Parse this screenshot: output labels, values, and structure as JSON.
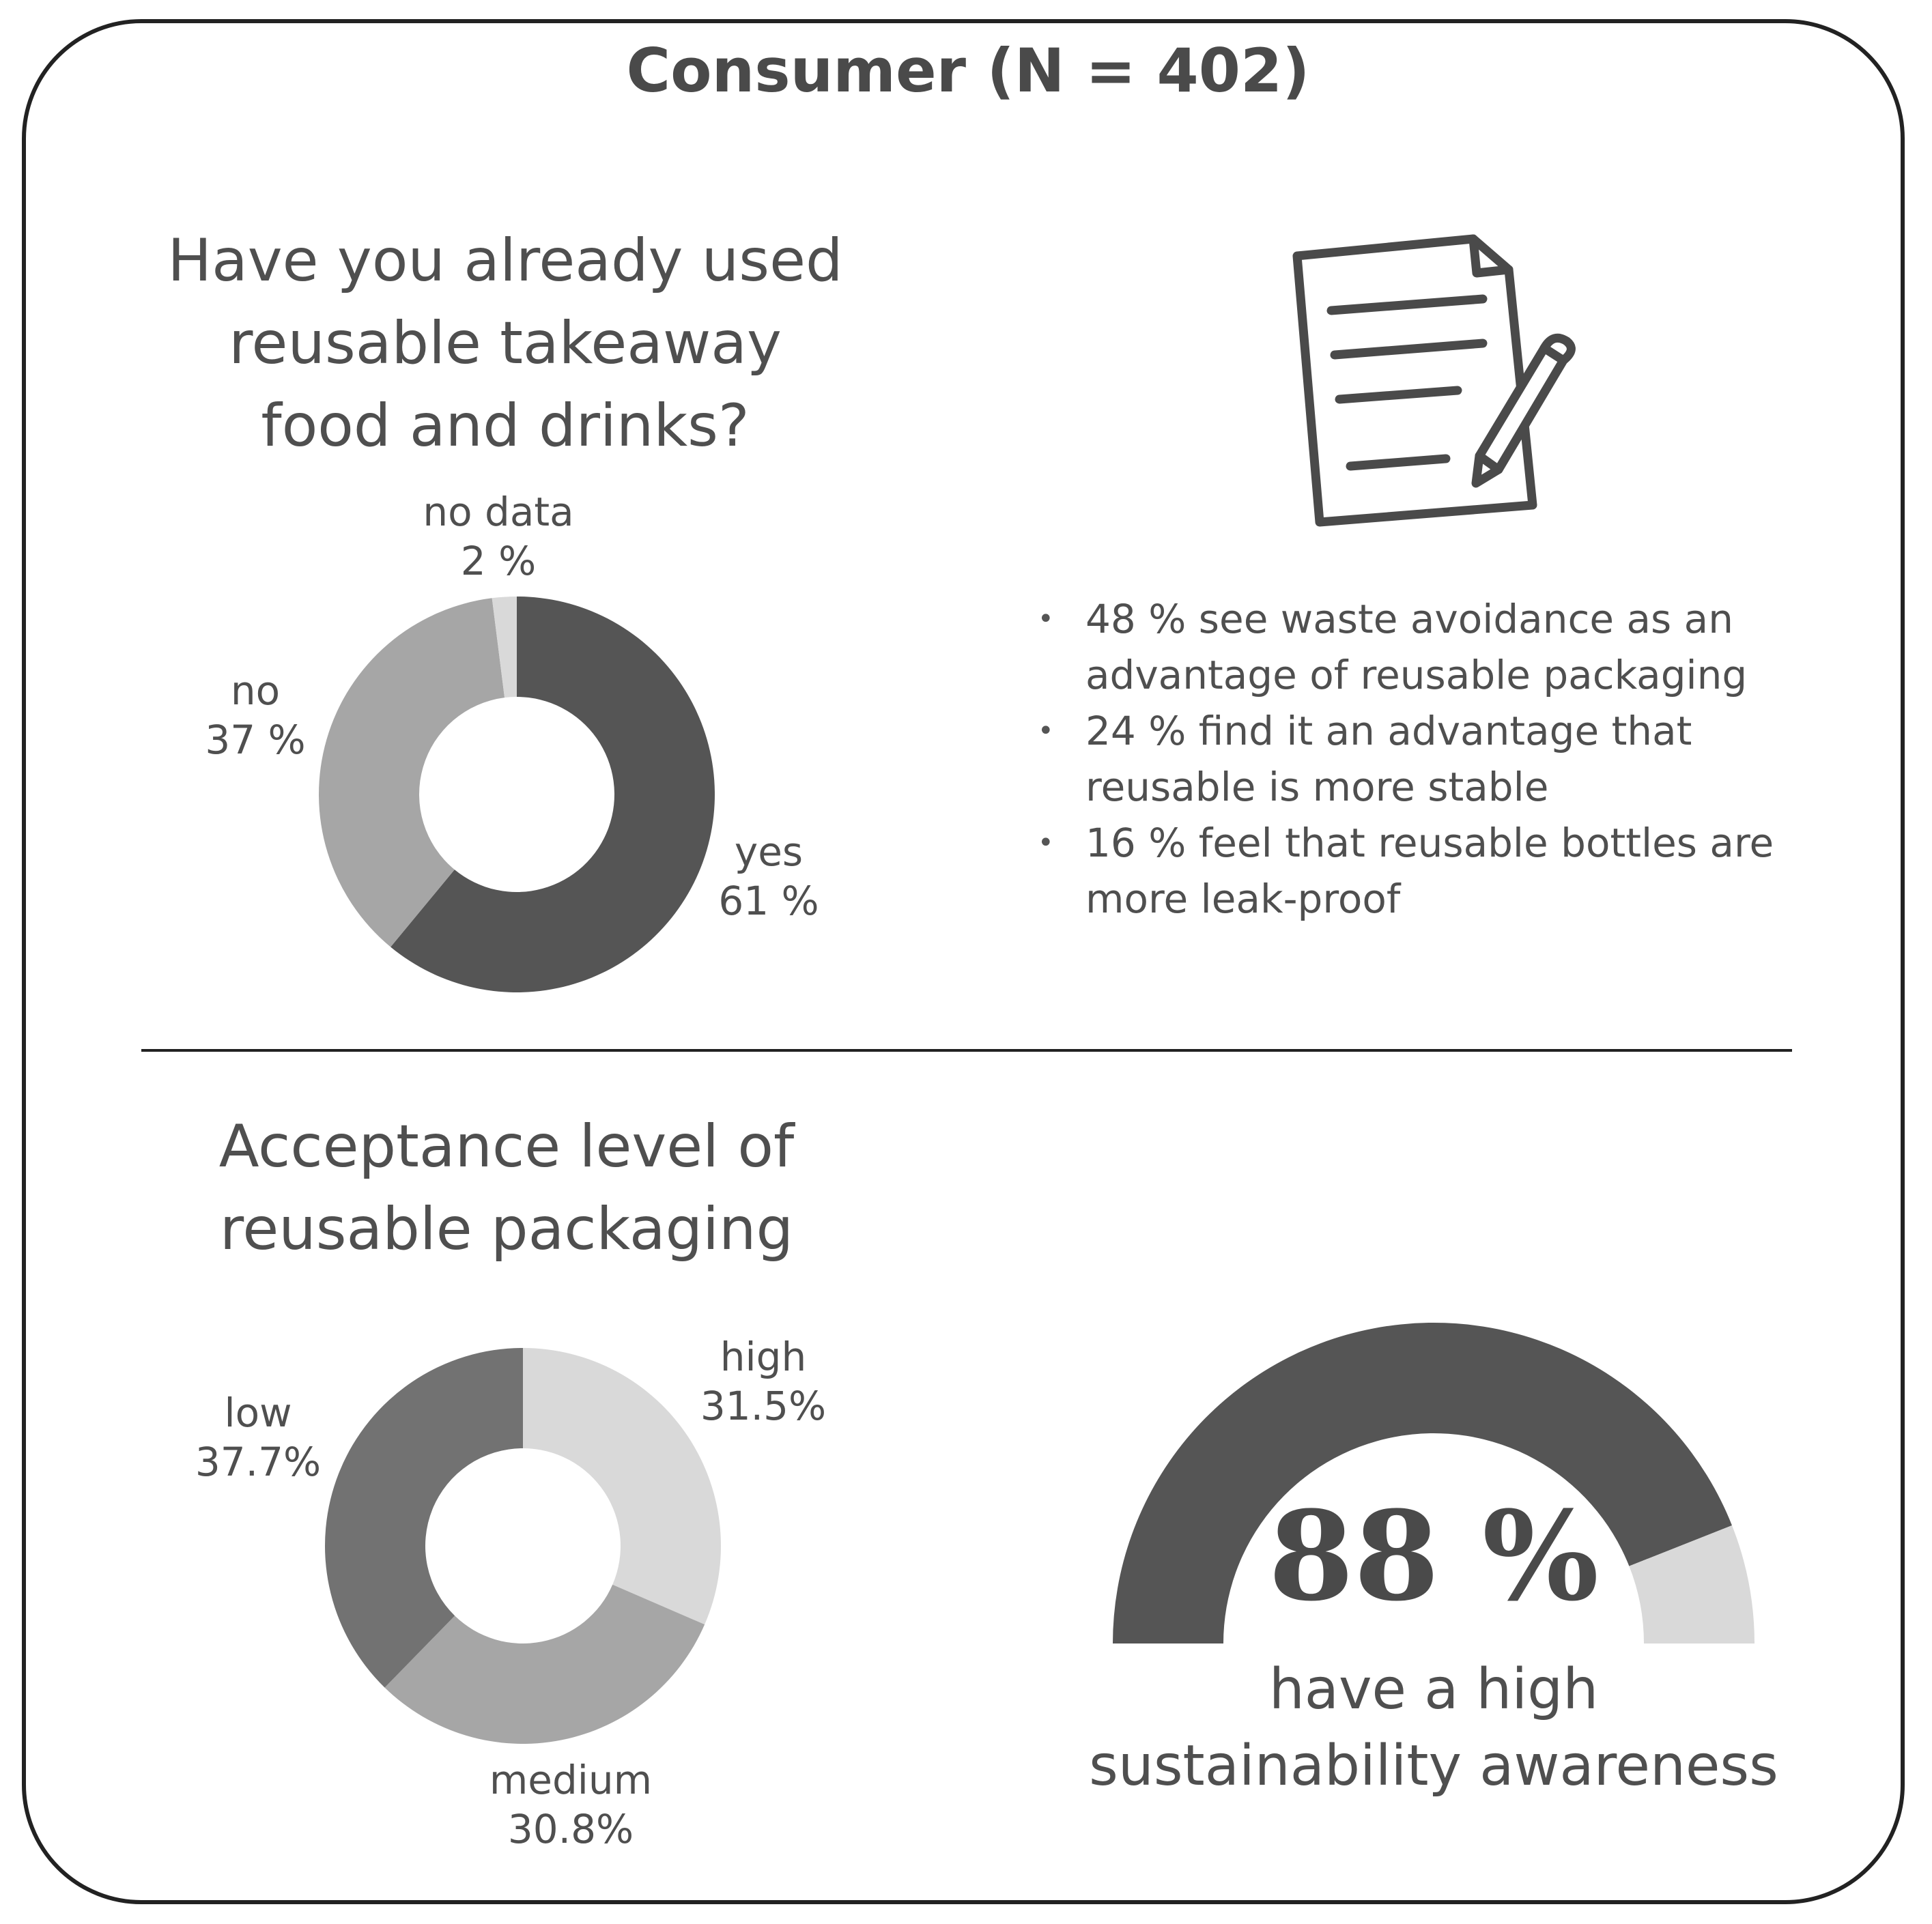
{
  "title": "Consumer (N = 402)",
  "chart_data": [
    {
      "type": "pie",
      "title": "Have you already used reusable takeaway food and drinks?",
      "title_lines": [
        "Have you already used",
        "reusable takeaway",
        "food and drinks?"
      ],
      "donut": true,
      "categories": [
        "yes",
        "no",
        "no data"
      ],
      "values": [
        61,
        37,
        2
      ],
      "value_labels": [
        "61 %",
        "37 %",
        "2 %"
      ],
      "colors": [
        "#555555",
        "#a6a6a6",
        "#d9d9d9"
      ]
    },
    {
      "type": "pie",
      "title": "Acceptance level of reusable packaging",
      "title_lines": [
        "Acceptance level of",
        "reusable packaging"
      ],
      "donut": true,
      "categories": [
        "high",
        "medium",
        "low"
      ],
      "values": [
        31.5,
        30.8,
        37.7
      ],
      "value_labels": [
        "31.5%",
        "30.8%",
        "37.7%"
      ],
      "colors": [
        "#d9d9d9",
        "#a6a6a6",
        "#727272"
      ]
    },
    {
      "type": "pie",
      "subtype": "semicircle-gauge",
      "value": 88,
      "value_label": "88 %",
      "caption_lines": [
        "have a high",
        "sustainability awareness"
      ],
      "colors": [
        "#555555",
        "#d9d9d9"
      ]
    }
  ],
  "bullets": [
    [
      "48 % see waste avoidance as an",
      "advantage of reusable packaging"
    ],
    [
      "24 % find it an advantage that",
      "reusable is more stable"
    ],
    [
      "16 % feel that reusable bottles are",
      "more leak-proof"
    ]
  ],
  "icons": {
    "document": "document-with-pencil-icon"
  }
}
